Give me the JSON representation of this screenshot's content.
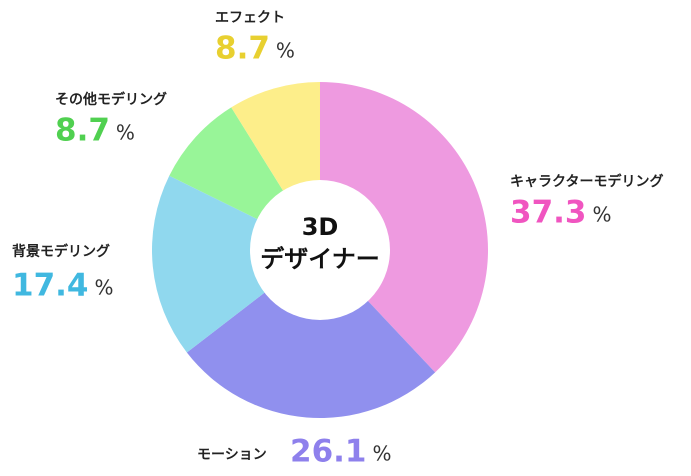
{
  "chart_data": {
    "type": "donut",
    "center_text": [
      "3D",
      "デザイナー"
    ],
    "unit": "%",
    "series": [
      {
        "name": "キャラクターモデリング",
        "value": 37.3,
        "color": "#ee9ae0",
        "label_color": "#f055c0"
      },
      {
        "name": "モーション",
        "value": 26.1,
        "color": "#9090ee",
        "label_color": "#8e80ec"
      },
      {
        "name": "背景モデリング",
        "value": 17.4,
        "color": "#90d8ee",
        "label_color": "#40b8e0"
      },
      {
        "name": "その他モデリング",
        "value": 8.7,
        "color": "#98f598",
        "label_color": "#50d050"
      },
      {
        "name": "エフェクト",
        "value": 8.7,
        "color": "#fdee8a",
        "label_color": "#e8d030"
      }
    ]
  }
}
